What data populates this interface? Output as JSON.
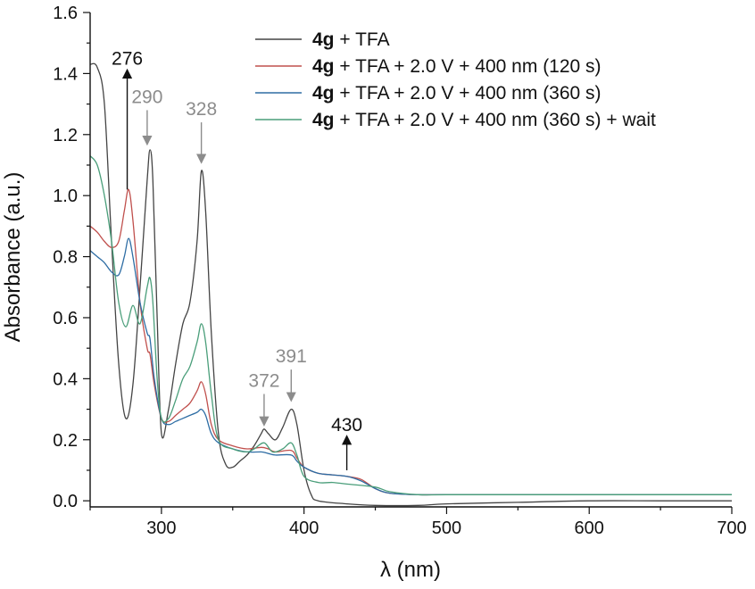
{
  "chart_data": {
    "type": "line",
    "xlabel": "λ (nm)",
    "ylabel": "Absorbance (a.u.)",
    "xlim": [
      250,
      700
    ],
    "ylim": [
      -0.02,
      1.6
    ],
    "x_ticks": [
      300,
      400,
      500,
      600,
      700
    ],
    "y_ticks": [
      0.0,
      0.2,
      0.4,
      0.6,
      0.8,
      1.0,
      1.2,
      1.4,
      1.6
    ],
    "grid": false,
    "legend_placement": "top-right",
    "legend": [
      {
        "bold": "4g",
        "rest": " + TFA"
      },
      {
        "bold": "4g",
        "rest": " + TFA + 2.0 V + 400 nm (120 s)"
      },
      {
        "bold": "4g",
        "rest": " + TFA + 2.0 V + 400 nm (360 s)"
      },
      {
        "bold": "4g",
        "rest": " + TFA + 2.0 V + 400 nm (360 s) + wait"
      }
    ],
    "series": [
      {
        "color": "#444444",
        "points": [
          [
            250,
            1.43
          ],
          [
            255,
            1.42
          ],
          [
            260,
            1.3
          ],
          [
            265,
            0.85
          ],
          [
            270,
            0.45
          ],
          [
            275,
            0.27
          ],
          [
            280,
            0.38
          ],
          [
            285,
            0.7
          ],
          [
            290,
            1.05
          ],
          [
            292,
            1.15
          ],
          [
            294,
            1.05
          ],
          [
            297,
            0.6
          ],
          [
            300,
            0.22
          ],
          [
            305,
            0.3
          ],
          [
            310,
            0.45
          ],
          [
            315,
            0.58
          ],
          [
            320,
            0.65
          ],
          [
            325,
            0.85
          ],
          [
            328,
            1.08
          ],
          [
            331,
            0.95
          ],
          [
            335,
            0.55
          ],
          [
            340,
            0.22
          ],
          [
            345,
            0.12
          ],
          [
            350,
            0.11
          ],
          [
            355,
            0.13
          ],
          [
            360,
            0.15
          ],
          [
            365,
            0.18
          ],
          [
            370,
            0.22
          ],
          [
            372,
            0.235
          ],
          [
            375,
            0.22
          ],
          [
            380,
            0.2
          ],
          [
            385,
            0.24
          ],
          [
            391,
            0.3
          ],
          [
            395,
            0.25
          ],
          [
            400,
            0.1
          ],
          [
            405,
            0.02
          ],
          [
            410,
            0.0
          ],
          [
            430,
            -0.01
          ],
          [
            450,
            -0.015
          ],
          [
            480,
            -0.015
          ],
          [
            500,
            -0.01
          ],
          [
            550,
            -0.005
          ],
          [
            600,
            0.0
          ],
          [
            650,
            0.0
          ],
          [
            700,
            0.0
          ]
        ]
      },
      {
        "color": "#c0504d",
        "points": [
          [
            250,
            0.9
          ],
          [
            255,
            0.88
          ],
          [
            260,
            0.85
          ],
          [
            265,
            0.83
          ],
          [
            270,
            0.85
          ],
          [
            274,
            0.95
          ],
          [
            277,
            1.02
          ],
          [
            280,
            0.92
          ],
          [
            285,
            0.65
          ],
          [
            290,
            0.5
          ],
          [
            292,
            0.48
          ],
          [
            295,
            0.38
          ],
          [
            300,
            0.27
          ],
          [
            305,
            0.26
          ],
          [
            310,
            0.28
          ],
          [
            315,
            0.3
          ],
          [
            320,
            0.32
          ],
          [
            325,
            0.36
          ],
          [
            328,
            0.39
          ],
          [
            331,
            0.35
          ],
          [
            335,
            0.25
          ],
          [
            340,
            0.2
          ],
          [
            350,
            0.18
          ],
          [
            360,
            0.17
          ],
          [
            370,
            0.175
          ],
          [
            375,
            0.17
          ],
          [
            380,
            0.16
          ],
          [
            391,
            0.165
          ],
          [
            395,
            0.14
          ],
          [
            400,
            0.11
          ],
          [
            410,
            0.09
          ],
          [
            420,
            0.085
          ],
          [
            430,
            0.08
          ],
          [
            440,
            0.07
          ],
          [
            450,
            0.04
          ],
          [
            460,
            0.025
          ],
          [
            480,
            0.02
          ],
          [
            500,
            0.02
          ],
          [
            550,
            0.02
          ],
          [
            600,
            0.02
          ],
          [
            650,
            0.02
          ],
          [
            700,
            0.02
          ]
        ]
      },
      {
        "color": "#2e6da4",
        "points": [
          [
            250,
            0.82
          ],
          [
            255,
            0.8
          ],
          [
            260,
            0.78
          ],
          [
            265,
            0.75
          ],
          [
            270,
            0.74
          ],
          [
            274,
            0.8
          ],
          [
            277,
            0.86
          ],
          [
            280,
            0.8
          ],
          [
            285,
            0.65
          ],
          [
            290,
            0.55
          ],
          [
            292,
            0.53
          ],
          [
            295,
            0.4
          ],
          [
            300,
            0.27
          ],
          [
            305,
            0.25
          ],
          [
            310,
            0.26
          ],
          [
            315,
            0.27
          ],
          [
            320,
            0.28
          ],
          [
            325,
            0.29
          ],
          [
            328,
            0.3
          ],
          [
            331,
            0.28
          ],
          [
            335,
            0.22
          ],
          [
            340,
            0.19
          ],
          [
            350,
            0.17
          ],
          [
            360,
            0.16
          ],
          [
            370,
            0.16
          ],
          [
            375,
            0.155
          ],
          [
            380,
            0.15
          ],
          [
            391,
            0.15
          ],
          [
            395,
            0.13
          ],
          [
            400,
            0.11
          ],
          [
            410,
            0.09
          ],
          [
            420,
            0.085
          ],
          [
            430,
            0.08
          ],
          [
            440,
            0.065
          ],
          [
            450,
            0.04
          ],
          [
            460,
            0.025
          ],
          [
            480,
            0.02
          ],
          [
            500,
            0.02
          ],
          [
            550,
            0.02
          ],
          [
            600,
            0.02
          ],
          [
            650,
            0.02
          ],
          [
            700,
            0.02
          ]
        ]
      },
      {
        "color": "#4a9e7a",
        "points": [
          [
            250,
            1.13
          ],
          [
            255,
            1.1
          ],
          [
            260,
            1.0
          ],
          [
            265,
            0.85
          ],
          [
            270,
            0.65
          ],
          [
            275,
            0.57
          ],
          [
            280,
            0.64
          ],
          [
            285,
            0.58
          ],
          [
            290,
            0.7
          ],
          [
            292,
            0.73
          ],
          [
            294,
            0.65
          ],
          [
            297,
            0.4
          ],
          [
            300,
            0.27
          ],
          [
            305,
            0.27
          ],
          [
            310,
            0.33
          ],
          [
            315,
            0.4
          ],
          [
            320,
            0.44
          ],
          [
            325,
            0.52
          ],
          [
            328,
            0.58
          ],
          [
            331,
            0.52
          ],
          [
            335,
            0.35
          ],
          [
            340,
            0.2
          ],
          [
            350,
            0.17
          ],
          [
            360,
            0.16
          ],
          [
            365,
            0.17
          ],
          [
            372,
            0.19
          ],
          [
            378,
            0.16
          ],
          [
            385,
            0.17
          ],
          [
            391,
            0.19
          ],
          [
            395,
            0.15
          ],
          [
            400,
            0.08
          ],
          [
            410,
            0.06
          ],
          [
            420,
            0.06
          ],
          [
            430,
            0.055
          ],
          [
            450,
            0.045
          ],
          [
            460,
            0.03
          ],
          [
            480,
            0.02
          ],
          [
            500,
            0.02
          ],
          [
            550,
            0.02
          ],
          [
            600,
            0.02
          ],
          [
            650,
            0.02
          ],
          [
            700,
            0.02
          ]
        ]
      }
    ],
    "annotations": [
      {
        "text": "276",
        "x": 276,
        "direction": "up",
        "color": "#111111",
        "y_from": 1.02,
        "y_to": 1.4
      },
      {
        "text": "290",
        "x": 290,
        "direction": "down",
        "color": "#8c8c8c",
        "y_from": 1.28,
        "y_to": 1.18
      },
      {
        "text": "328",
        "x": 328,
        "direction": "down",
        "color": "#8c8c8c",
        "y_from": 1.24,
        "y_to": 1.12
      },
      {
        "text": "372",
        "x": 372,
        "direction": "down",
        "color": "#8c8c8c",
        "y_from": 0.35,
        "y_to": 0.26
      },
      {
        "text": "391",
        "x": 391,
        "direction": "down",
        "color": "#8c8c8c",
        "y_from": 0.43,
        "y_to": 0.34
      },
      {
        "text": "430",
        "x": 430,
        "direction": "up",
        "color": "#111111",
        "y_from": 0.1,
        "y_to": 0.2
      }
    ]
  }
}
